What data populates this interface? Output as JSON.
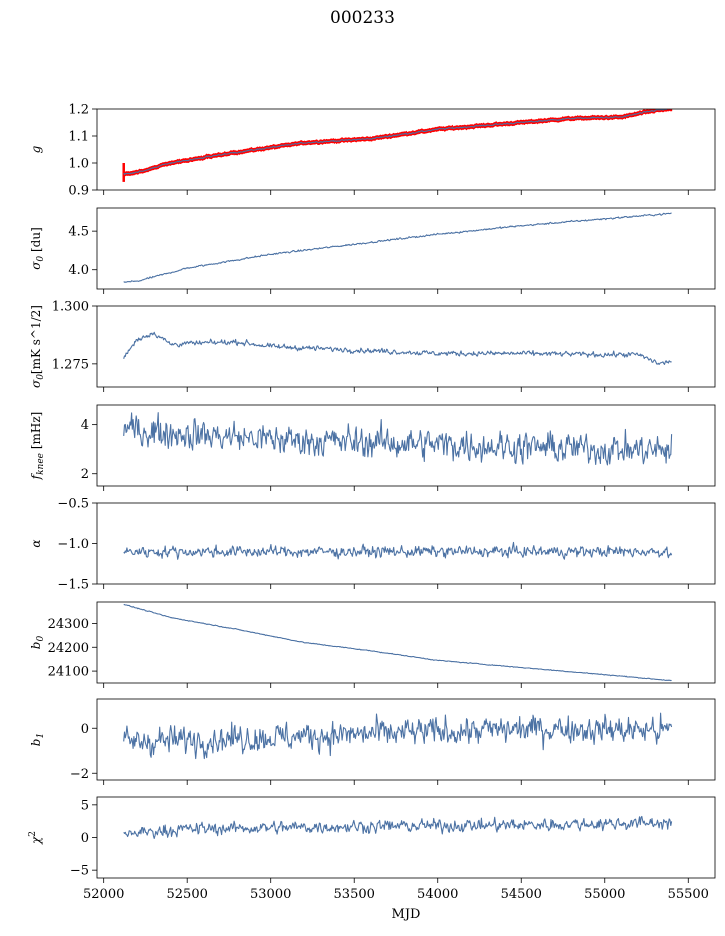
{
  "figure": {
    "title": "000233",
    "xlabel": "MJD"
  },
  "chart_data": {
    "type": "line",
    "title": "000233",
    "xlabel": "MJD",
    "xlim": [
      51960,
      55660
    ],
    "x_ticks": [
      52000,
      52500,
      53000,
      53500,
      54000,
      54500,
      55000,
      55500
    ],
    "x_start": 52120,
    "x_end": 55400,
    "line_color": "#4c72a4",
    "panels": [
      {
        "ylabel_base": "g",
        "ylabel_sub": "",
        "ylabel_sup": "",
        "ylabel_unit": "",
        "ylim": [
          0.9,
          1.2
        ],
        "y_ticks": [
          0.9,
          1.0,
          1.1,
          1.2
        ],
        "y_tick_labels": [
          "0.9",
          "1.0",
          "1.1",
          "1.2"
        ],
        "noise": 0.002,
        "trend": [
          [
            52120,
            0.96
          ],
          [
            52200,
            0.965
          ],
          [
            52400,
            1.0
          ],
          [
            52800,
            1.04
          ],
          [
            53200,
            1.075
          ],
          [
            53600,
            1.09
          ],
          [
            54000,
            1.125
          ],
          [
            54400,
            1.145
          ],
          [
            54800,
            1.165
          ],
          [
            55100,
            1.17
          ],
          [
            55300,
            1.195
          ],
          [
            55400,
            1.2
          ]
        ],
        "overlay": {
          "color": "#ff0000",
          "band": 0.006,
          "spike": [
            [
              52120,
              0.93,
              1.0
            ]
          ]
        }
      },
      {
        "ylabel_base": "σ",
        "ylabel_sub": "0",
        "ylabel_sup": "",
        "ylabel_unit": " [du]",
        "ylim": [
          3.75,
          4.8
        ],
        "y_ticks": [
          4.0,
          4.5
        ],
        "y_tick_labels": [
          "4.0",
          "4.5"
        ],
        "noise": 0.008,
        "trend": [
          [
            52120,
            3.84
          ],
          [
            52200,
            3.85
          ],
          [
            52500,
            4.02
          ],
          [
            53000,
            4.2
          ],
          [
            53500,
            4.33
          ],
          [
            54000,
            4.46
          ],
          [
            54500,
            4.57
          ],
          [
            55000,
            4.66
          ],
          [
            55400,
            4.73
          ]
        ]
      },
      {
        "ylabel_base": "σ",
        "ylabel_sub": "0",
        "ylabel_sup": "",
        "ylabel_unit": "[mK s^1/2]",
        "ylim": [
          1.265,
          1.3
        ],
        "y_ticks": [
          1.275,
          1.3
        ],
        "y_tick_labels": [
          "1.275",
          "1.300"
        ],
        "noise": 0.0008,
        "trend": [
          [
            52120,
            1.2778
          ],
          [
            52200,
            1.2855
          ],
          [
            52300,
            1.2885
          ],
          [
            52400,
            1.2835
          ],
          [
            52800,
            1.2845
          ],
          [
            53000,
            1.2825
          ],
          [
            53500,
            1.281
          ],
          [
            54000,
            1.2795
          ],
          [
            54500,
            1.2795
          ],
          [
            55000,
            1.279
          ],
          [
            55200,
            1.279
          ],
          [
            55330,
            1.275
          ],
          [
            55400,
            1.2762
          ]
        ]
      },
      {
        "ylabel_base": "f",
        "ylabel_sub": "knee",
        "ylabel_sup": "",
        "ylabel_unit": " [mHz]",
        "ylim": [
          1.5,
          4.8
        ],
        "y_ticks": [
          2,
          4
        ],
        "y_tick_labels": [
          "2",
          "4"
        ],
        "noise": 0.45,
        "trend": [
          [
            52120,
            3.8
          ],
          [
            53000,
            3.4
          ],
          [
            54000,
            3.2
          ],
          [
            55000,
            3.0
          ],
          [
            55400,
            2.95
          ]
        ]
      },
      {
        "ylabel_base": "α",
        "ylabel_sub": "",
        "ylabel_sup": "",
        "ylabel_unit": "",
        "ylim": [
          -1.5,
          -0.5
        ],
        "y_ticks": [
          -1.5,
          -1.0,
          -0.5
        ],
        "y_tick_labels": [
          "−1.5",
          "−1.0",
          "−0.5"
        ],
        "noise": 0.05,
        "trend": [
          [
            52120,
            -1.1
          ],
          [
            55400,
            -1.1
          ]
        ]
      },
      {
        "ylabel_base": "b",
        "ylabel_sub": "0",
        "ylabel_sup": "",
        "ylabel_unit": "",
        "ylim": [
          24050,
          24390
        ],
        "y_ticks": [
          24100,
          24200,
          24300
        ],
        "y_tick_labels": [
          "24100",
          "24200",
          "24300"
        ],
        "noise": 1.2,
        "trend": [
          [
            52120,
            24380
          ],
          [
            52400,
            24325
          ],
          [
            52800,
            24275
          ],
          [
            53200,
            24220
          ],
          [
            53600,
            24185
          ],
          [
            54000,
            24145
          ],
          [
            54500,
            24115
          ],
          [
            55000,
            24085
          ],
          [
            55400,
            24060
          ]
        ]
      },
      {
        "ylabel_base": "b",
        "ylabel_sub": "1",
        "ylabel_sup": "",
        "ylabel_unit": "",
        "ylim": [
          -2.3,
          1.3
        ],
        "y_ticks": [
          -2,
          0
        ],
        "y_tick_labels": [
          "−2",
          "0"
        ],
        "noise": 0.45,
        "trend": [
          [
            52120,
            -0.6
          ],
          [
            53000,
            -0.4
          ],
          [
            54000,
            -0.15
          ],
          [
            54700,
            0.0
          ],
          [
            55400,
            -0.1
          ]
        ]
      },
      {
        "ylabel_base": "χ",
        "ylabel_sub": "",
        "ylabel_sup": "2",
        "ylabel_unit": "",
        "ylim": [
          -6.2,
          6.2
        ],
        "y_ticks": [
          -5,
          0,
          5
        ],
        "y_tick_labels": [
          "−5",
          "0",
          "5"
        ],
        "noise": 0.7,
        "trend": [
          [
            52120,
            0.6
          ],
          [
            52500,
            1.3
          ],
          [
            53500,
            1.7
          ],
          [
            54500,
            1.9
          ],
          [
            55400,
            2.3
          ]
        ]
      }
    ]
  }
}
